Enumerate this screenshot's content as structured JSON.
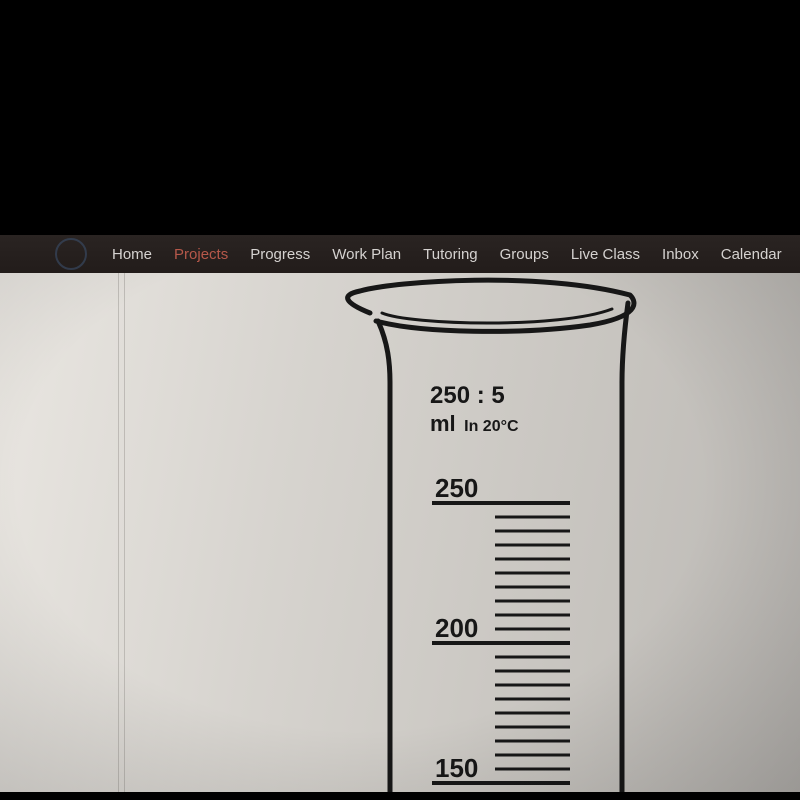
{
  "navbar": {
    "items": [
      {
        "label": "Home",
        "active": false
      },
      {
        "label": "Projects",
        "active": true
      },
      {
        "label": "Progress",
        "active": false
      },
      {
        "label": "Work Plan",
        "active": false
      },
      {
        "label": "Tutoring",
        "active": false
      },
      {
        "label": "Groups",
        "active": false
      },
      {
        "label": "Live Class",
        "active": false
      },
      {
        "label": "Inbox",
        "active": false
      },
      {
        "label": "Calendar",
        "active": false
      }
    ],
    "bg_color": "#241e1c",
    "text_color": "#d5d2d0",
    "active_color": "#b6584a"
  },
  "cylinder": {
    "label_ratio": "250 : 5",
    "label_unit": "ml",
    "label_condition": "In 20°C",
    "stroke_color": "#171717",
    "stroke_width_outer": 5,
    "stroke_width_tick": 3,
    "label_font_main": 22,
    "label_font_sub": 16,
    "scale": {
      "major_labels": [
        "250",
        "200",
        "150"
      ],
      "major_y": [
        230,
        370,
        510
      ],
      "minor_start_y": 230,
      "minor_spacing": 14,
      "minor_count_total": 24,
      "major_tick_x1": 100,
      "major_tick_x2": 230,
      "minor_tick_x1": 155,
      "minor_tick_x2": 230,
      "label_x": 95,
      "label_fontsize": 26
    }
  },
  "content_bg": "#d7d4cf"
}
